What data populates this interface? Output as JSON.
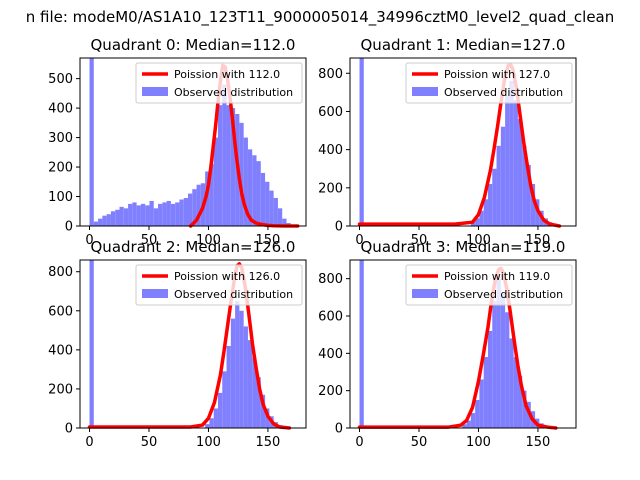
{
  "figure": {
    "suptitle": "n file: modeM0/AS1A10_123T11_9000005014_34996cztM0_level2_quad_clean"
  },
  "colors": {
    "hist": "#8080ff",
    "poisson": "#ff0000",
    "axes": "#000000"
  },
  "chart_data": [
    {
      "type": "bar",
      "title": "Quadrant 0: Median=112.0",
      "median": 112.0,
      "xlim": [
        -8,
        182
      ],
      "ylim": [
        0,
        570
      ],
      "xticks": [
        0,
        50,
        100,
        150
      ],
      "yticks": [
        0,
        100,
        200,
        300,
        400,
        500
      ],
      "legend": [
        "Poission with 112.0",
        "Observed distribution"
      ],
      "legend_position": "top-right",
      "bin_width": 3.6,
      "hist": [
        [
          0,
          570
        ],
        [
          3.6,
          15
        ],
        [
          7.2,
          25
        ],
        [
          10.8,
          35
        ],
        [
          14.4,
          40
        ],
        [
          18,
          50
        ],
        [
          21.6,
          55
        ],
        [
          25.2,
          65
        ],
        [
          28.8,
          60
        ],
        [
          32.4,
          75
        ],
        [
          36,
          80
        ],
        [
          39.6,
          70
        ],
        [
          43.2,
          75
        ],
        [
          46.8,
          70
        ],
        [
          50.4,
          85
        ],
        [
          54,
          60
        ],
        [
          57.6,
          75
        ],
        [
          61.2,
          80
        ],
        [
          64.8,
          85
        ],
        [
          68.4,
          75
        ],
        [
          72,
          80
        ],
        [
          75.6,
          90
        ],
        [
          79.2,
          95
        ],
        [
          82.8,
          110
        ],
        [
          86.4,
          125
        ],
        [
          90,
          140
        ],
        [
          93.6,
          145
        ],
        [
          97.2,
          185
        ],
        [
          100.8,
          210
        ],
        [
          104.4,
          300
        ],
        [
          108,
          410
        ],
        [
          111.6,
          480
        ],
        [
          115.2,
          410
        ],
        [
          118.8,
          400
        ],
        [
          122.4,
          380
        ],
        [
          126,
          350
        ],
        [
          129.6,
          300
        ],
        [
          133.2,
          260
        ],
        [
          136.8,
          240
        ],
        [
          140.4,
          220
        ],
        [
          144,
          180
        ],
        [
          147.6,
          150
        ],
        [
          151.2,
          120
        ],
        [
          154.8,
          95
        ],
        [
          158.4,
          60
        ],
        [
          162,
          25
        ],
        [
          165.6,
          10
        ]
      ],
      "series": [
        {
          "name": "Poission with 112.0",
          "x": [
            85,
            90,
            95,
            98,
            100,
            102,
            104,
            106,
            108,
            110,
            112,
            114,
            116,
            118,
            120,
            122,
            124,
            126,
            128,
            130,
            133,
            136,
            140,
            145,
            150,
            155,
            165,
            175
          ],
          "y": [
            0,
            20,
            60,
            100,
            140,
            200,
            270,
            340,
            420,
            490,
            545,
            540,
            500,
            440,
            370,
            290,
            220,
            160,
            110,
            75,
            40,
            20,
            10,
            5,
            2,
            1,
            0,
            0
          ]
        }
      ]
    },
    {
      "type": "bar",
      "title": "Quadrant 1: Median=127.0",
      "median": 127.0,
      "xlim": [
        -8,
        182
      ],
      "ylim": [
        0,
        880
      ],
      "xticks": [
        0,
        50,
        100,
        150
      ],
      "yticks": [
        0,
        200,
        400,
        600,
        800
      ],
      "legend": [
        "Poission with 127.0",
        "Observed distribution"
      ],
      "legend_position": "top-right",
      "bin_width": 3.6,
      "hist": [
        [
          0,
          880
        ],
        [
          93.6,
          20
        ],
        [
          97.2,
          40
        ],
        [
          100.8,
          80
        ],
        [
          104.4,
          140
        ],
        [
          108,
          220
        ],
        [
          111.6,
          300
        ],
        [
          115.2,
          420
        ],
        [
          118.8,
          520
        ],
        [
          122.4,
          680
        ],
        [
          126,
          760
        ],
        [
          129.6,
          660
        ],
        [
          133.2,
          560
        ],
        [
          136.8,
          420
        ],
        [
          140.4,
          320
        ],
        [
          144,
          220
        ],
        [
          147.6,
          140
        ],
        [
          151.2,
          80
        ],
        [
          154.8,
          40
        ],
        [
          158.4,
          20
        ],
        [
          162,
          8
        ]
      ],
      "series": [
        {
          "name": "Poission with 127.0",
          "x": [
            0,
            80,
            95,
            100,
            105,
            110,
            113,
            116,
            119,
            122,
            125,
            127,
            129,
            132,
            135,
            138,
            141,
            144,
            147,
            150,
            155,
            160,
            168
          ],
          "y": [
            10,
            10,
            20,
            60,
            150,
            290,
            400,
            520,
            650,
            770,
            840,
            845,
            820,
            720,
            580,
            440,
            320,
            210,
            130,
            80,
            30,
            10,
            0
          ]
        }
      ]
    },
    {
      "type": "bar",
      "title": "Quadrant 2: Median=126.0",
      "median": 126.0,
      "xlim": [
        -8,
        182
      ],
      "ylim": [
        0,
        860
      ],
      "xticks": [
        0,
        50,
        100,
        150
      ],
      "yticks": [
        0,
        200,
        400,
        600,
        800
      ],
      "legend": [
        "Poission with 126.0",
        "Observed distribution"
      ],
      "legend_position": "top-right",
      "bin_width": 3.6,
      "hist": [
        [
          0,
          860
        ],
        [
          97.2,
          20
        ],
        [
          100.8,
          50
        ],
        [
          104.4,
          100
        ],
        [
          108,
          180
        ],
        [
          111.6,
          290
        ],
        [
          115.2,
          420
        ],
        [
          118.8,
          560
        ],
        [
          122.4,
          650
        ],
        [
          126,
          600
        ],
        [
          129.6,
          520
        ],
        [
          133.2,
          450
        ],
        [
          136.8,
          360
        ],
        [
          140.4,
          260
        ],
        [
          144,
          170
        ],
        [
          147.6,
          100
        ],
        [
          151.2,
          60
        ],
        [
          154.8,
          30
        ],
        [
          158.4,
          15
        ],
        [
          162,
          5
        ]
      ],
      "series": [
        {
          "name": "Poission with 126.0",
          "x": [
            0,
            85,
            95,
            100,
            105,
            110,
            113,
            116,
            119,
            122,
            124,
            126,
            128,
            131,
            134,
            137,
            140,
            143,
            146,
            150,
            155,
            160,
            168
          ],
          "y": [
            5,
            5,
            15,
            50,
            130,
            270,
            390,
            520,
            650,
            770,
            830,
            840,
            820,
            720,
            580,
            430,
            310,
            200,
            120,
            60,
            20,
            5,
            0
          ]
        }
      ]
    },
    {
      "type": "bar",
      "title": "Quadrant 3: Median=119.0",
      "median": 119.0,
      "xlim": [
        -8,
        182
      ],
      "ylim": [
        0,
        900
      ],
      "xticks": [
        0,
        50,
        100,
        150
      ],
      "yticks": [
        0,
        200,
        400,
        600,
        800
      ],
      "legend": [
        "Poission with 119.0",
        "Observed distribution"
      ],
      "legend_position": "top-right",
      "bin_width": 3.6,
      "hist": [
        [
          0,
          900
        ],
        [
          86.4,
          20
        ],
        [
          90,
          40
        ],
        [
          93.6,
          80
        ],
        [
          97.2,
          150
        ],
        [
          100.8,
          260
        ],
        [
          104.4,
          380
        ],
        [
          108,
          520
        ],
        [
          111.6,
          680
        ],
        [
          115.2,
          800
        ],
        [
          118.8,
          720
        ],
        [
          122.4,
          620
        ],
        [
          126,
          480
        ],
        [
          129.6,
          380
        ],
        [
          133.2,
          280
        ],
        [
          136.8,
          200
        ],
        [
          140.4,
          140
        ],
        [
          144,
          90
        ],
        [
          147.6,
          50
        ],
        [
          151.2,
          25
        ],
        [
          154.8,
          10
        ]
      ],
      "series": [
        {
          "name": "Poission with 119.0",
          "x": [
            0,
            75,
            85,
            90,
            95,
            100,
            104,
            108,
            111,
            114,
            117,
            119,
            121,
            124,
            127,
            130,
            133,
            136,
            140,
            145,
            150,
            158,
            165
          ],
          "y": [
            5,
            5,
            15,
            40,
            110,
            250,
            390,
            540,
            680,
            790,
            850,
            855,
            830,
            740,
            610,
            470,
            340,
            230,
            120,
            50,
            15,
            5,
            0
          ]
        }
      ]
    }
  ]
}
